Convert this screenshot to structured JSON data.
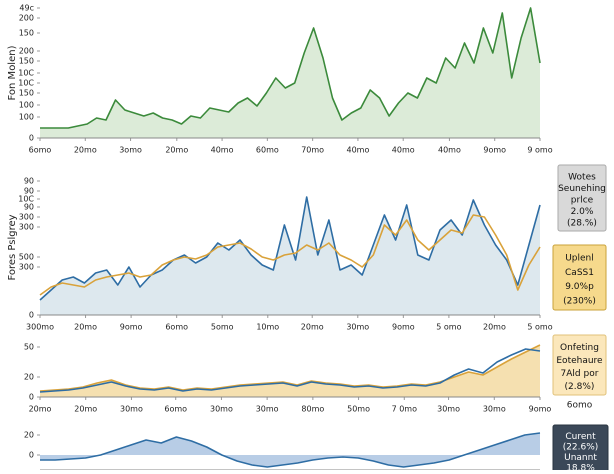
{
  "chart_data": [
    {
      "type": "line",
      "area": true,
      "ylabel": "Fon Molen)",
      "ylim": [
        0,
        130
      ],
      "yticks": [
        {
          "value": 130,
          "label": "49c"
        },
        {
          "value": 120,
          "label": "200"
        },
        {
          "value": 105,
          "label": "150"
        },
        {
          "value": 87,
          "label": "200"
        },
        {
          "value": 77,
          "label": "150"
        },
        {
          "value": 65,
          "label": "10C"
        },
        {
          "value": 55,
          "label": "10C"
        },
        {
          "value": 45,
          "label": "150"
        },
        {
          "value": 33,
          "label": "100"
        },
        {
          "value": 21,
          "label": "100"
        },
        0
      ],
      "xlim": [
        0,
        53
      ],
      "xticks": [
        {
          "value": 0,
          "label": "6omo"
        },
        {
          "value": 4.8,
          "label": "20mo"
        },
        {
          "value": 9.6,
          "label": "3omo"
        },
        {
          "value": 14.5,
          "label": "20mo"
        },
        {
          "value": 19.3,
          "label": "40mo"
        },
        {
          "value": 24.1,
          "label": "60mo"
        },
        {
          "value": 28.9,
          "label": "70mo"
        },
        {
          "value": 33.7,
          "label": "40mo"
        },
        {
          "value": 38.5,
          "label": "40mo"
        },
        {
          "value": 43.4,
          "label": "40mo"
        },
        {
          "value": 48.2,
          "label": "9omo"
        },
        {
          "value": 53,
          "label": "9 omo"
        }
      ],
      "series": [
        {
          "color": "#3b8a3b",
          "fill": "#dcebd8",
          "values": [
            10,
            10,
            10,
            10,
            12,
            14,
            20,
            18,
            38,
            28,
            25,
            22,
            25,
            20,
            18,
            14,
            22,
            20,
            30,
            28,
            26,
            35,
            40,
            32,
            45,
            60,
            50,
            55,
            85,
            110,
            80,
            40,
            18,
            25,
            30,
            48,
            40,
            22,
            35,
            45,
            40,
            60,
            55,
            80,
            70,
            95,
            75,
            110,
            85,
            125,
            60,
            100,
            130,
            75
          ]
        }
      ]
    },
    {
      "type": "line",
      "area": true,
      "ylabel": "Fores Pslgrey",
      "ylim": [
        0,
        135
      ],
      "yticks": [
        {
          "value": 134,
          "label": "90"
        },
        {
          "value": 124,
          "label": "90"
        },
        {
          "value": 116,
          "label": "10C"
        },
        {
          "value": 108,
          "label": "90"
        },
        {
          "value": 98,
          "label": "300"
        },
        {
          "value": 88,
          "label": "300"
        },
        {
          "value": 58,
          "label": "500"
        },
        {
          "value": 48,
          "label": "300"
        },
        0
      ],
      "xlim": [
        0,
        45
      ],
      "xticks": [
        {
          "value": 0,
          "label": "300mo"
        },
        {
          "value": 4.1,
          "label": "20mo"
        },
        {
          "value": 8.2,
          "label": "9omo"
        },
        {
          "value": 12.3,
          "label": "6omo"
        },
        {
          "value": 16.4,
          "label": "5omo"
        },
        {
          "value": 20.5,
          "label": "10mo"
        },
        {
          "value": 24.5,
          "label": "20mo"
        },
        {
          "value": 28.6,
          "label": "30mo"
        },
        {
          "value": 32.7,
          "label": "9omo"
        },
        {
          "value": 36.8,
          "label": "5 omo"
        },
        {
          "value": 40.9,
          "label": "20mo"
        },
        {
          "value": 45,
          "label": "5 omo"
        }
      ],
      "series": [
        {
          "color": "#2e6da4",
          "fill": "#dde8ee",
          "values": [
            15,
            25,
            35,
            38,
            32,
            42,
            45,
            30,
            48,
            28,
            40,
            45,
            55,
            60,
            52,
            58,
            72,
            65,
            75,
            60,
            50,
            45,
            90,
            55,
            118,
            60,
            95,
            45,
            50,
            40,
            70,
            100,
            75,
            110,
            60,
            55,
            85,
            95,
            80,
            115,
            90,
            70,
            55,
            30,
            70,
            110
          ]
        },
        {
          "color": "#d9a23a",
          "values": [
            20,
            28,
            32,
            30,
            28,
            35,
            38,
            40,
            42,
            38,
            40,
            50,
            55,
            58,
            56,
            60,
            68,
            70,
            72,
            66,
            58,
            55,
            60,
            62,
            70,
            65,
            72,
            60,
            55,
            48,
            60,
            90,
            80,
            95,
            75,
            65,
            75,
            85,
            82,
            100,
            98,
            80,
            60,
            25,
            50,
            68
          ]
        }
      ]
    },
    {
      "type": "line",
      "area": true,
      "ylim": [
        0,
        52
      ],
      "yticks": [
        50,
        20,
        0
      ],
      "xlim": [
        0,
        35
      ],
      "xticks": [
        {
          "value": 0,
          "label": "20mo"
        },
        {
          "value": 3.2,
          "label": "20mo"
        },
        {
          "value": 6.4,
          "label": "30mo"
        },
        {
          "value": 9.5,
          "label": "6omo"
        },
        {
          "value": 12.7,
          "label": "30mo"
        },
        {
          "value": 15.9,
          "label": "30mo"
        },
        {
          "value": 19.1,
          "label": "80mo"
        },
        {
          "value": 22.3,
          "label": "50mo"
        },
        {
          "value": 25.5,
          "label": "7 0mo"
        },
        {
          "value": 28.6,
          "label": "30mo"
        },
        {
          "value": 31.8,
          "label": "30mo"
        },
        {
          "value": 35,
          "label": "9omo"
        }
      ],
      "series": [
        {
          "color": "#d9a23a",
          "fill": "#f5e0b0",
          "values": [
            6,
            7,
            8,
            10,
            14,
            17,
            12,
            9,
            8,
            10,
            7,
            9,
            8,
            10,
            12,
            13,
            14,
            15,
            12,
            16,
            14,
            13,
            11,
            12,
            10,
            11,
            13,
            12,
            15,
            20,
            25,
            22,
            30,
            38,
            45,
            52
          ]
        },
        {
          "color": "#2e6da4",
          "values": [
            5,
            6,
            7,
            9,
            12,
            15,
            11,
            8,
            7,
            9,
            6,
            8,
            7,
            9,
            11,
            12,
            13,
            14,
            11,
            15,
            13,
            12,
            10,
            11,
            9,
            10,
            12,
            11,
            14,
            22,
            28,
            24,
            35,
            42,
            48,
            46
          ]
        }
      ]
    },
    {
      "type": "line",
      "area": true,
      "ylim": [
        -15,
        25
      ],
      "yticks": [
        20,
        0
      ],
      "xlim": [
        0,
        33
      ],
      "series": [
        {
          "color": "#2e6da4",
          "fill": "#b8cde6",
          "values": [
            -5,
            -5,
            -4,
            -3,
            0,
            5,
            10,
            15,
            12,
            18,
            14,
            8,
            0,
            -6,
            -10,
            -12,
            -10,
            -8,
            -5,
            -3,
            -2,
            -3,
            -6,
            -10,
            -12,
            -10,
            -8,
            -5,
            0,
            5,
            10,
            15,
            20,
            22
          ]
        }
      ]
    }
  ],
  "info_boxes": [
    {
      "lines": [
        "Wotes",
        "Seunehing",
        "prlce",
        "2.0%",
        "(28.%)"
      ]
    },
    {
      "lines": [
        "Uplenl",
        "CaSS1",
        "9.0%p",
        "(230%)"
      ]
    },
    {
      "lines": [
        "Onfeting",
        "Eotehaure",
        "7Ald por",
        "(2.8%)"
      ],
      "note": "6omo"
    },
    {
      "lines": [
        "Curent",
        "(22.6%)",
        "Unannt",
        "18.8%"
      ]
    }
  ]
}
